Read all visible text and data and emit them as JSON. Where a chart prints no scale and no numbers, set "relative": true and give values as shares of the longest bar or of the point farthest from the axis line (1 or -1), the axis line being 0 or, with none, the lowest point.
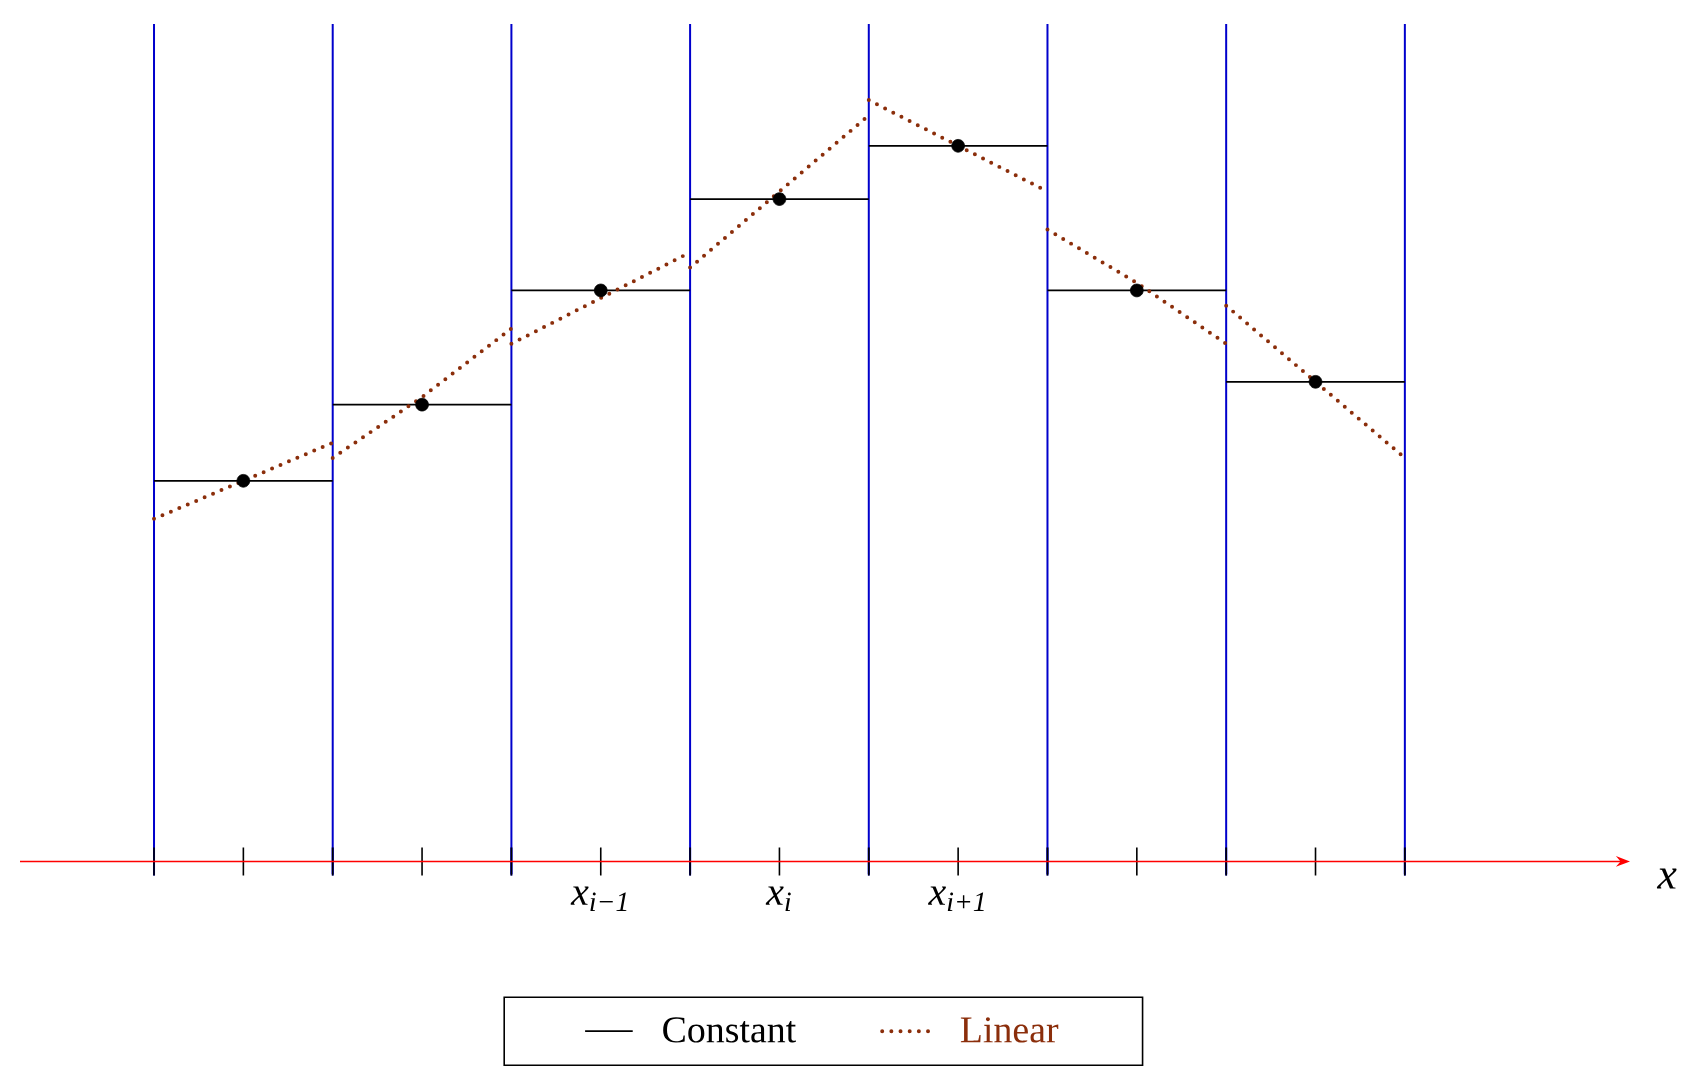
{
  "chart_data": {
    "type": "line",
    "relative": true,
    "xlabel": "x",
    "grid": "x",
    "categories": [
      null,
      null,
      null,
      null,
      null,
      "x$_{i−1}$",
      null,
      "x$_{i}$",
      null,
      "x$_{i+1}$",
      null,
      null,
      null,
      null,
      null
    ],
    "series": [
      {
        "name": "Constant",
        "color": "#000000",
        "line_style": "solid",
        "values": [
          0.5,
          0.5,
          0.5,
          null,
          0.75,
          0.75,
          0.75,
          null,
          0.94,
          0.94,
          0.94,
          null,
          0.63,
          0.63,
          0.63
        ]
      },
      {
        "color": "#000000",
        "line_style": "solid",
        "values": [
          null,
          null,
          0.6,
          0.6,
          0.6,
          null,
          0.87,
          0.87,
          0.87,
          null,
          0.75,
          0.75,
          0.75,
          null,
          null
        ]
      },
      {
        "name": "Linear",
        "color": "#8b2e0b",
        "line_style": "dotted",
        "values": [
          0.45,
          0.5,
          0.55,
          null,
          0.68,
          0.74,
          0.8,
          null,
          1.0,
          0.94,
          0.88,
          null,
          0.73,
          0.63,
          0.53
        ]
      },
      {
        "color": "#8b2e0b",
        "line_style": "dotted",
        "values": [
          null,
          null,
          0.53,
          0.61,
          0.7,
          null,
          0.78,
          0.88,
          0.98,
          null,
          0.83,
          0.76,
          0.68,
          null,
          null
        ]
      },
      {
        "type": "scatter",
        "color": "#000000",
        "marker": "circle",
        "values": [
          null,
          0.5,
          null,
          0.6,
          null,
          0.75,
          null,
          0.87,
          null,
          0.94,
          null,
          0.75,
          null,
          0.63,
          null
        ]
      }
    ],
    "legend": "bottom"
  }
}
